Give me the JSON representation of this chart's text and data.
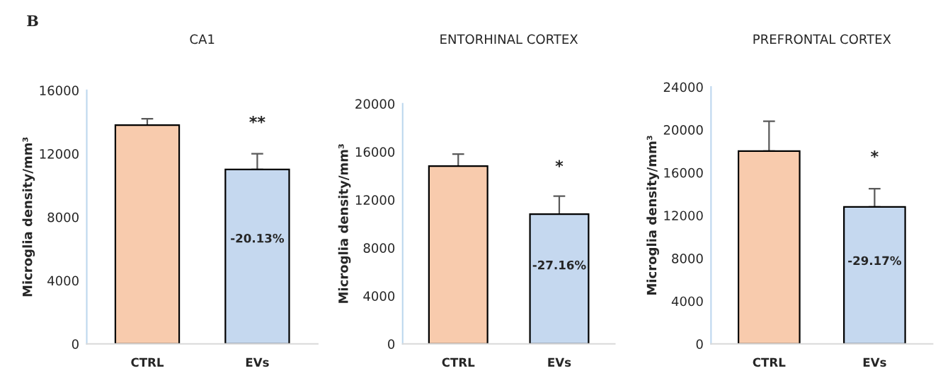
{
  "chart_data": [
    {
      "type": "bar",
      "title": "CA1",
      "ylabel": "Microglia density/mm³",
      "categories": [
        "CTRL",
        "EVs"
      ],
      "values": [
        13800,
        11000
      ],
      "colors": [
        "#f8cbad",
        "#c5d8ef"
      ],
      "errors": [
        [
          13800,
          14200
        ],
        [
          11000,
          12000
        ]
      ],
      "ylim": [
        0,
        16000
      ],
      "yticks": [
        0,
        4000,
        8000,
        12000,
        16000
      ],
      "grid": false,
      "legend": false,
      "annotations": [
        "B",
        "**",
        "-20.13%"
      ]
    },
    {
      "type": "bar",
      "title": "ENTORHINAL CORTEX",
      "ylabel": "Microglia density/mm³",
      "categories": [
        "CTRL",
        "EVs"
      ],
      "values": [
        14800,
        10800
      ],
      "colors": [
        "#f8cbad",
        "#c5d8ef"
      ],
      "errors": [
        [
          14800,
          15800
        ],
        [
          10800,
          12300
        ]
      ],
      "ylim": [
        0,
        20000
      ],
      "yticks": [
        0,
        4000,
        8000,
        12000,
        16000,
        20000
      ],
      "grid": false,
      "legend": false,
      "annotations": [
        "*",
        "-27.16%"
      ]
    },
    {
      "type": "bar",
      "title": "PREFRONTAL CORTEX",
      "ylabel": "Microglia density/mm³",
      "categories": [
        "CTRL",
        "EVs"
      ],
      "values": [
        18000,
        12800
      ],
      "colors": [
        "#f8cbad",
        "#c5d8ef"
      ],
      "errors": [
        [
          18000,
          20800
        ],
        [
          12800,
          14500
        ]
      ],
      "ylim": [
        0,
        24000
      ],
      "yticks": [
        0,
        4000,
        8000,
        12000,
        16000,
        20000,
        24000
      ],
      "grid": false,
      "legend": false,
      "annotations": [
        "*",
        "-29.17%"
      ]
    }
  ]
}
